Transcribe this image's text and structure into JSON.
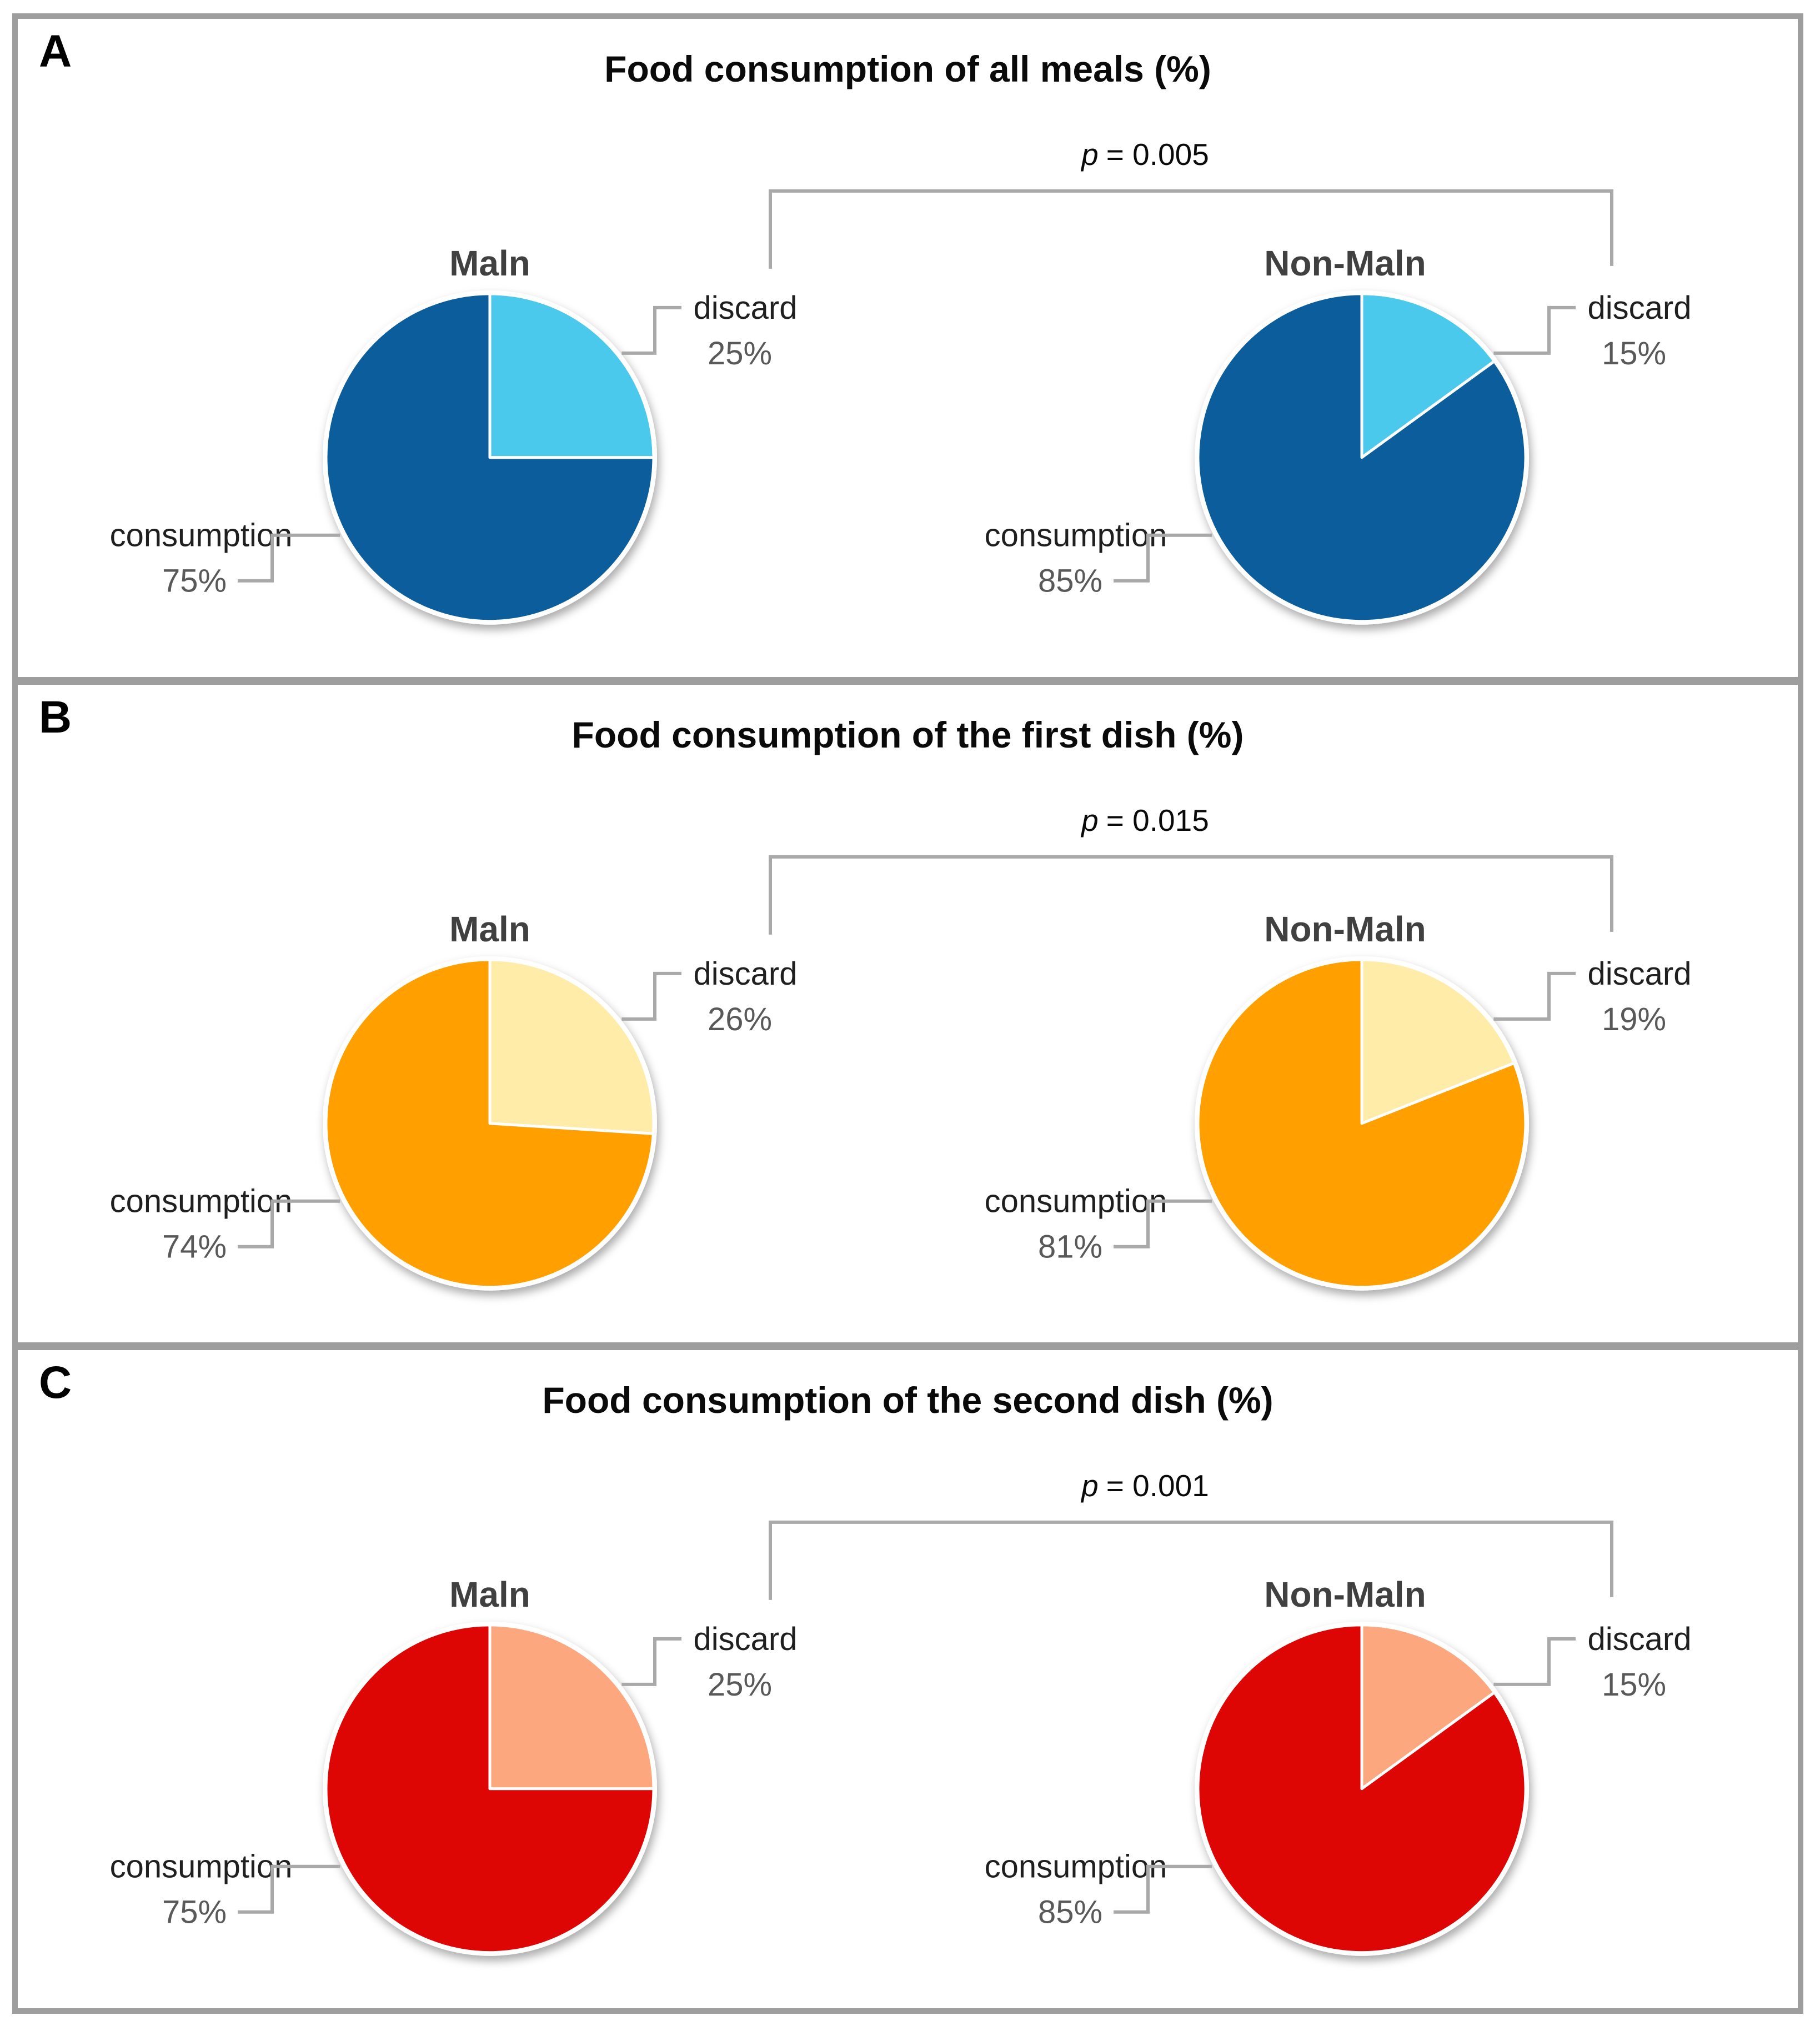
{
  "figure_labels": {
    "p_symbol": "p"
  },
  "panels": [
    {
      "letter": "A",
      "title": "Food consumption of all meals (%)",
      "p_value": "= 0.005"
    },
    {
      "letter": "B",
      "title": "Food consumption of the first dish (%)",
      "p_value": "= 0.015"
    },
    {
      "letter": "C",
      "title": "Food consumption of the second dish (%)",
      "p_value": "= 0.001"
    }
  ],
  "chart_data": [
    {
      "type": "pie",
      "panel": "A",
      "title": "Food consumption of all meals (%)",
      "p_value": "p = 0.005",
      "slice_labels": [
        "discard",
        "consumption"
      ],
      "series": [
        {
          "name": "Maln",
          "values": [
            25,
            75
          ]
        },
        {
          "name": "Non-Maln",
          "values": [
            15,
            85
          ]
        }
      ],
      "colors": {
        "discard": "#4BC9EC",
        "consumption": "#0B5D9B"
      },
      "layout": "two pies side by side, discard slice starts at 12 o'clock clockwise, labels with elbow connectors, significance bracket between pies"
    },
    {
      "type": "pie",
      "panel": "B",
      "title": "Food consumption of the first dish (%)",
      "p_value": "p = 0.015",
      "slice_labels": [
        "discard",
        "consumption"
      ],
      "series": [
        {
          "name": "Maln",
          "values": [
            26,
            74
          ]
        },
        {
          "name": "Non-Maln",
          "values": [
            19,
            81
          ]
        }
      ],
      "colors": {
        "discard": "#FFECA9",
        "consumption": "#FFA000"
      },
      "layout": "two pies side by side, discard slice starts at 12 o'clock clockwise, labels with elbow connectors, significance bracket between pies"
    },
    {
      "type": "pie",
      "panel": "C",
      "title": "Food consumption of the second dish (%)",
      "p_value": "p = 0.001",
      "slice_labels": [
        "discard",
        "consumption"
      ],
      "series": [
        {
          "name": "Maln",
          "values": [
            25,
            75
          ]
        },
        {
          "name": "Non-Maln",
          "values": [
            15,
            85
          ]
        }
      ],
      "colors": {
        "discard": "#FDA77E",
        "consumption": "#DE0505"
      },
      "layout": "two pies side by side, discard slice starts at 12 o'clock clockwise, labels with elbow connectors, significance bracket between pies"
    }
  ],
  "styles": {
    "line_gray": "#a9a9a9",
    "border_gray": "#9e9e9e",
    "pct_color": "#595959",
    "label_color": "#1f1f1f",
    "group_title_color": "#404040"
  }
}
